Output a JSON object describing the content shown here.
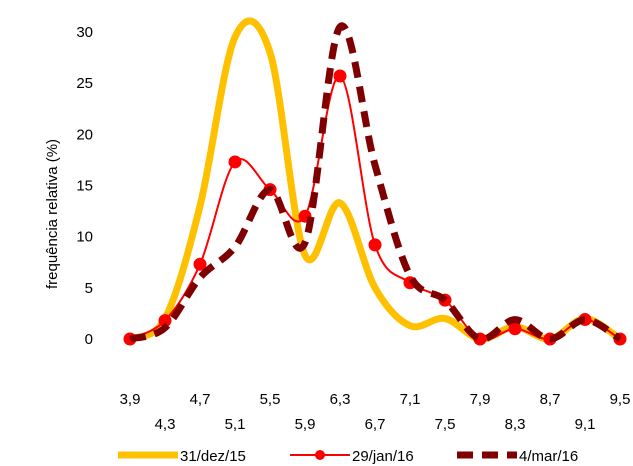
{
  "chart_data": {
    "type": "line",
    "title": "",
    "xlabel": "",
    "ylabel": "frequência relativa (%)",
    "ylim": [
      0,
      30
    ],
    "yticks": [
      0,
      5,
      10,
      15,
      20,
      25,
      30
    ],
    "xlim": [
      3.9,
      9.5
    ],
    "x": [
      3.9,
      4.3,
      4.7,
      5.1,
      5.5,
      5.9,
      6.3,
      6.7,
      7.1,
      7.5,
      7.9,
      8.3,
      8.7,
      9.1,
      9.5
    ],
    "xtick_labels": [
      "3,9",
      "4,3",
      "4,7",
      "5,1",
      "5,5",
      "5,9",
      "6,3",
      "6,7",
      "7,1",
      "7,5",
      "7,9",
      "8,3",
      "8,7",
      "9,1",
      "9,5"
    ],
    "grid": false,
    "legend_position": "bottom",
    "series": [
      {
        "name": "31/dez/15",
        "color": "#FFC000",
        "style": "thick-solid",
        "values": [
          0,
          2,
          13,
          29.5,
          28,
          8.2,
          13.3,
          5,
          1.3,
          2,
          0,
          1.2,
          0,
          2,
          0
        ]
      },
      {
        "name": "29/jan/16",
        "color": "#FF0000",
        "style": "thin-solid-markers",
        "values": [
          0,
          1.8,
          7.3,
          17.3,
          14.6,
          12,
          25.7,
          9.2,
          5.5,
          3.8,
          0,
          1,
          0,
          1.9,
          0
        ]
      },
      {
        "name": "4/mar/16",
        "color": "#7F0000",
        "style": "thick-dashed",
        "values": [
          0,
          1.1,
          6,
          9,
          14.6,
          9.4,
          30.5,
          17,
          6.2,
          3.8,
          0,
          1.9,
          0,
          1.9,
          0
        ]
      }
    ]
  }
}
